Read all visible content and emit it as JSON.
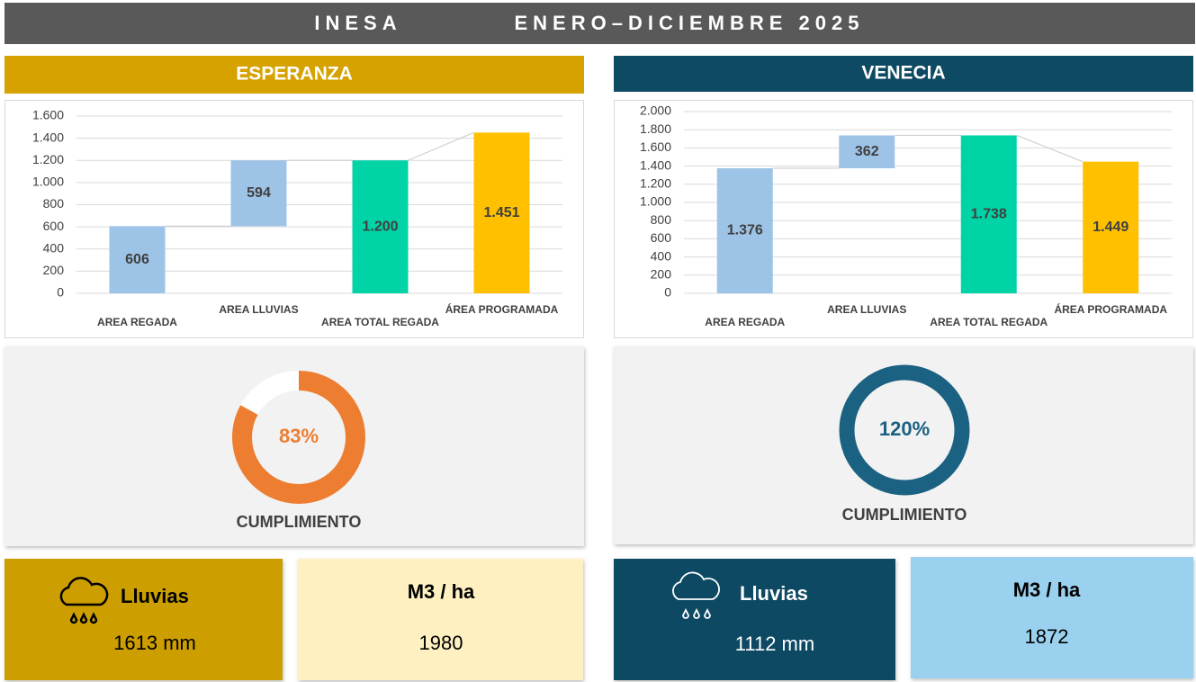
{
  "header": {
    "title": "INESA",
    "period": "ENERO–DICIEMBRE 2025"
  },
  "panels": [
    {
      "title": "ESPERANZA",
      "cards": [
        {
          "title": "Lluvias",
          "value": "1613 mm"
        },
        {
          "title": "M3 / ha",
          "value": "1980"
        }
      ]
    },
    {
      "title": "VENECIA",
      "cards": [
        {
          "title": "Lluvias",
          "value": "1112 mm"
        },
        {
          "title": "M3 / ha",
          "value": "1872"
        }
      ]
    }
  ],
  "chart_data": [
    {
      "type": "waterfall",
      "categories": [
        "AREA REGADA",
        "AREA LLUVIAS",
        "AREA TOTAL REGADA",
        "ÁREA PROGRAMADA"
      ],
      "values": [
        606,
        594,
        1200,
        1451
      ],
      "value_labels": [
        "606",
        "594",
        "1.200",
        "1.451"
      ],
      "measure": [
        "relative",
        "relative",
        "total",
        "total"
      ],
      "colors": [
        "#9dc3e6",
        "#9dc3e6",
        "#00d3a6",
        "#ffc000"
      ],
      "ylim": [
        0,
        1600
      ],
      "yticks": [
        0,
        200,
        400,
        600,
        800,
        {
          "value": 1000,
          "label": "1.000"
        },
        {
          "value": 1200,
          "label": "1.200"
        },
        {
          "value": 1400,
          "label": "1.400"
        },
        {
          "value": 1600,
          "label": "1.600"
        }
      ],
      "grid": true
    },
    {
      "type": "waterfall",
      "categories": [
        "AREA REGADA",
        "AREA LLUVIAS",
        "AREA TOTAL REGADA",
        "ÁREA PROGRAMADA"
      ],
      "values": [
        1376,
        362,
        1738,
        1449
      ],
      "value_labels": [
        "1.376",
        "362",
        "1.738",
        "1.449"
      ],
      "measure": [
        "relative",
        "relative",
        "total",
        "total"
      ],
      "colors": [
        "#9dc3e6",
        "#9dc3e6",
        "#00d3a6",
        "#ffc000"
      ],
      "ylim": [
        0,
        2000
      ],
      "yticks": [
        0,
        200,
        400,
        600,
        800,
        {
          "value": 1000,
          "label": "1.000"
        },
        {
          "value": 1200,
          "label": "1.200"
        },
        {
          "value": 1400,
          "label": "1.400"
        },
        {
          "value": 1600,
          "label": "1.600"
        },
        {
          "value": 1800,
          "label": "1.800"
        },
        {
          "value": 2000,
          "label": "2.000"
        }
      ],
      "grid": true
    },
    {
      "type": "donut",
      "values": [
        83
      ],
      "value_labels": [
        "83%"
      ],
      "ylim": [
        0,
        100
      ],
      "color": "#ed7d31",
      "label": "CUMPLIMIENTO"
    },
    {
      "type": "donut",
      "values": [
        120
      ],
      "value_labels": [
        "120%"
      ],
      "ylim": [
        0,
        100
      ],
      "color": "#1b6182",
      "label": "CUMPLIMIENTO"
    }
  ]
}
